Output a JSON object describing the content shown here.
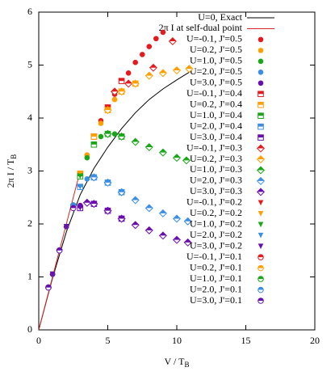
{
  "chart_data": {
    "type": "line_scatter",
    "xlabel": {
      "text": "V / T",
      "sub": "B"
    },
    "ylabel": {
      "text": "2π I / T",
      "sub": "B"
    },
    "xlim": [
      0,
      20
    ],
    "ylim": [
      0,
      6
    ],
    "xticks": [
      0,
      5,
      10,
      15,
      20
    ],
    "yticks": [
      0,
      1,
      2,
      3,
      4,
      5,
      6
    ],
    "lines": [
      {
        "name": "U=0, Exact",
        "color": "#000000",
        "x": [
          0,
          1,
          2,
          3,
          4,
          5,
          6,
          7,
          8,
          9,
          10,
          11
        ],
        "values": [
          0,
          0.98,
          1.85,
          2.55,
          3.05,
          3.45,
          3.8,
          4.1,
          4.35,
          4.55,
          4.72,
          4.88
        ]
      },
      {
        "name": "2π I at self-dual point",
        "color": "#d62728",
        "x": [
          0,
          3
        ],
        "values": [
          0,
          3
        ]
      }
    ],
    "series": [
      {
        "name": "U=-0.1, J'=0.5",
        "color": "#e41a1c",
        "marker": "circle",
        "x": [
          0.7,
          1,
          1.5,
          2,
          2.5,
          3,
          3.5,
          4,
          4.5,
          5,
          5.5,
          6,
          6.5,
          7,
          7.5,
          8,
          8.5,
          9
        ],
        "values": [
          0.8,
          1.05,
          1.5,
          1.95,
          2.35,
          2.95,
          3.3,
          3.65,
          3.95,
          4.2,
          4.45,
          4.7,
          4.85,
          5.05,
          5.2,
          5.35,
          5.5,
          5.62
        ]
      },
      {
        "name": "U=0.2, J'=0.5",
        "color": "#ff9f00",
        "marker": "circle",
        "x": [
          0.7,
          1,
          1.5,
          2,
          2.5,
          3,
          3.5,
          4,
          4.5,
          5,
          5.5,
          6
        ],
        "values": [
          0.8,
          1.05,
          1.5,
          1.95,
          2.35,
          2.95,
          3.3,
          3.65,
          3.9,
          4.15,
          4.35,
          4.5
        ]
      },
      {
        "name": "U=1.0, J'=0.5",
        "color": "#19a619",
        "marker": "circle",
        "x": [
          0.7,
          1,
          1.5,
          2,
          2.5,
          3,
          3.5,
          4,
          4.5,
          5,
          5.5
        ],
        "values": [
          0.8,
          1.05,
          1.5,
          1.95,
          2.35,
          2.9,
          3.25,
          3.5,
          3.65,
          3.7,
          3.7
        ]
      },
      {
        "name": "U=2.0, J'=0.5",
        "color": "#3a8ee6",
        "marker": "circle",
        "x": [
          0.7,
          1,
          1.5,
          2,
          2.5,
          3,
          3.5,
          4
        ],
        "values": [
          0.8,
          1.05,
          1.5,
          1.95,
          2.35,
          2.7,
          2.85,
          2.88
        ]
      },
      {
        "name": "U=3.0, J'=0.5",
        "color": "#6a0dad",
        "marker": "circle",
        "x": [
          0.7,
          1,
          1.5,
          2,
          2.5,
          3,
          3.5
        ],
        "values": [
          0.8,
          1.05,
          1.5,
          1.95,
          2.3,
          2.35,
          2.4
        ]
      },
      {
        "name": "U=-0.1, J'=0.4",
        "color": "#e41a1c",
        "marker": "square",
        "x": [
          3,
          4,
          5,
          6
        ],
        "values": [
          2.95,
          3.65,
          4.2,
          4.7
        ]
      },
      {
        "name": "U=0.2, J'=0.4",
        "color": "#ff9f00",
        "marker": "square",
        "x": [
          3,
          4,
          5,
          6,
          7
        ],
        "values": [
          2.95,
          3.65,
          4.15,
          4.5,
          4.65
        ]
      },
      {
        "name": "U=1.0, J'=0.4",
        "color": "#19a619",
        "marker": "square",
        "x": [
          3,
          4,
          5,
          6
        ],
        "values": [
          2.9,
          3.5,
          3.7,
          3.65
        ]
      },
      {
        "name": "U=2.0, J'=0.4",
        "color": "#3a8ee6",
        "marker": "square",
        "x": [
          3,
          4,
          5,
          6
        ],
        "values": [
          2.7,
          2.88,
          2.78,
          2.6
        ]
      },
      {
        "name": "U=3.0, J'=0.4",
        "color": "#6a0dad",
        "marker": "square",
        "x": [
          3,
          4,
          5,
          6
        ],
        "values": [
          2.3,
          2.38,
          2.25,
          2.1
        ]
      },
      {
        "name": "U=-0.1, J'=0.3",
        "color": "#e41a1c",
        "marker": "diamond",
        "x": [
          5.5,
          6.5,
          8.3,
          9.7
        ],
        "values": [
          4.5,
          4.65,
          4.95,
          5.45
        ]
      },
      {
        "name": "U=0.2, J'=0.3",
        "color": "#ff9f00",
        "marker": "diamond",
        "x": [
          5,
          6,
          7,
          8,
          9,
          10,
          10.9
        ],
        "values": [
          4.15,
          4.5,
          4.65,
          4.8,
          4.85,
          4.9,
          4.93
        ]
      },
      {
        "name": "U=1.0, J'=0.3",
        "color": "#19a619",
        "marker": "diamond",
        "x": [
          5,
          6,
          7,
          8,
          9,
          10,
          10.7
        ],
        "values": [
          3.7,
          3.65,
          3.55,
          3.45,
          3.35,
          3.25,
          3.2
        ]
      },
      {
        "name": "U=2.0, J'=0.3",
        "color": "#3a8ee6",
        "marker": "diamond",
        "x": [
          4,
          5,
          6,
          7,
          8,
          9,
          10,
          10.8
        ],
        "values": [
          2.88,
          2.78,
          2.6,
          2.45,
          2.3,
          2.2,
          2.1,
          2.05
        ]
      },
      {
        "name": "U=3.0, J'=0.3",
        "color": "#6a0dad",
        "marker": "diamond",
        "x": [
          3.5,
          4,
          5,
          6,
          7,
          8,
          9,
          10,
          10.8
        ],
        "values": [
          2.4,
          2.38,
          2.25,
          2.1,
          1.98,
          1.88,
          1.78,
          1.7,
          1.65
        ]
      },
      {
        "name": "U=-0.1, J'=0.2",
        "color": "#e41a1c",
        "marker": "triangle",
        "x": [
          1,
          2,
          3
        ],
        "values": [
          1.05,
          1.95,
          2.95
        ]
      },
      {
        "name": "U=0.2, J'=0.2",
        "color": "#ff9f00",
        "marker": "triangle",
        "x": [
          1,
          2,
          3
        ],
        "values": [
          1.05,
          1.95,
          2.95
        ]
      },
      {
        "name": "U=1.0, J'=0.2",
        "color": "#19a619",
        "marker": "triangle",
        "x": [
          1,
          2,
          3
        ],
        "values": [
          1.05,
          1.95,
          2.9
        ]
      },
      {
        "name": "U=2.0, J'=0.2",
        "color": "#3a8ee6",
        "marker": "triangle",
        "x": [
          1,
          2,
          3
        ],
        "values": [
          1.05,
          1.95,
          2.7
        ]
      },
      {
        "name": "U=3.0, J'=0.2",
        "color": "#6a0dad",
        "marker": "triangle",
        "x": [
          1,
          2,
          3
        ],
        "values": [
          1.05,
          1.95,
          2.3
        ]
      },
      {
        "name": "U=-0.1, J'=0.1",
        "color": "#e41a1c",
        "marker": "halfcircle",
        "x": [
          0.7,
          1.5,
          2.5
        ],
        "values": [
          0.8,
          1.5,
          2.35
        ]
      },
      {
        "name": "U=0.2, J'=0.1",
        "color": "#ff9f00",
        "marker": "halfcircle",
        "x": [
          0.7,
          1.5,
          2.5
        ],
        "values": [
          0.8,
          1.5,
          2.35
        ]
      },
      {
        "name": "U=1.0, J'=0.1",
        "color": "#19a619",
        "marker": "halfcircle",
        "x": [
          0.7,
          1.5,
          2.5
        ],
        "values": [
          0.8,
          1.5,
          2.35
        ]
      },
      {
        "name": "U=2.0, J'=0.1",
        "color": "#3a8ee6",
        "marker": "halfcircle",
        "x": [
          0.7,
          1.5,
          2.5
        ],
        "values": [
          0.8,
          1.5,
          2.35
        ]
      },
      {
        "name": "U=3.0, J'=0.1",
        "color": "#6a0dad",
        "marker": "halfcircle",
        "x": [
          0.7,
          1.5,
          2.5
        ],
        "values": [
          0.8,
          1.5,
          2.3
        ]
      }
    ]
  }
}
